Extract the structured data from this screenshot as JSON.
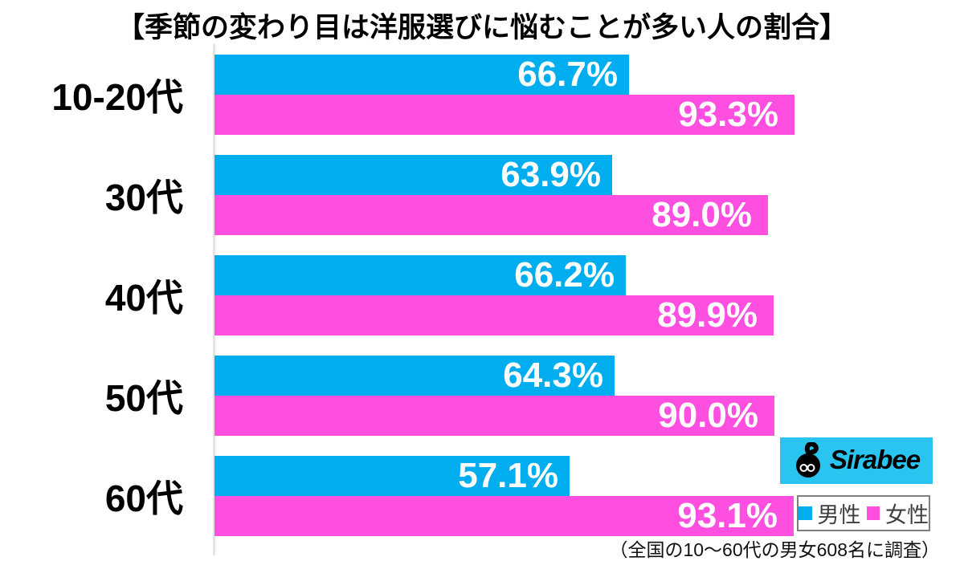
{
  "title": "【季節の変わり目は洋服選びに悩むことが多い人の割合】",
  "chart_data": {
    "type": "bar",
    "orientation": "horizontal",
    "categories": [
      "10-20代",
      "30代",
      "40代",
      "50代",
      "60代"
    ],
    "series": [
      {
        "name": "男性",
        "color": "#00aeef",
        "values": [
          66.7,
          63.9,
          66.2,
          64.3,
          57.1
        ]
      },
      {
        "name": "女性",
        "color": "#ff4fe1",
        "values": [
          93.3,
          89.0,
          89.9,
          90.0,
          93.1
        ]
      }
    ],
    "value_suffix": "%",
    "value_labels": "inside-end, white bold",
    "xlim": [
      0,
      100
    ],
    "grid": false,
    "legend_position": "bottom-right"
  },
  "legend": {
    "items": [
      {
        "label": "男性",
        "color": "#00aeef"
      },
      {
        "label": "女性",
        "color": "#ff4fe1"
      }
    ]
  },
  "footnote": "（全国の10〜60代の男女608名に調査）",
  "logo": {
    "text": "Sirabee",
    "bg_color": "#29c5f0",
    "icon": "sirabee-bee-mascot"
  },
  "colors": {
    "axis_line": "#e4e4e4",
    "title_text": "#000000",
    "bar_label_text": "#ffffff"
  }
}
